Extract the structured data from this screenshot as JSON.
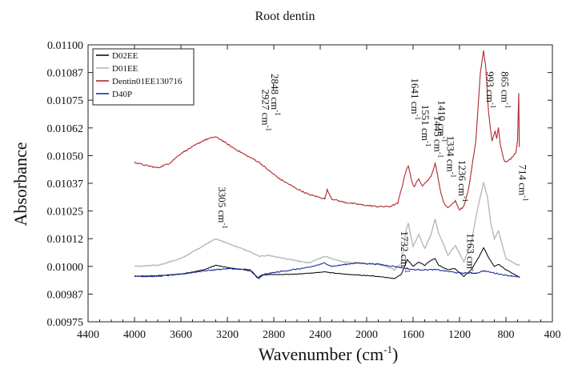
{
  "chart_data": {
    "type": "line",
    "title": "Root dentin",
    "xlabel": "Wavenumber (cm",
    "xlabel_sup": "-1",
    "xlabel_close": ")",
    "ylabel": "Absorbance",
    "xlim": [
      4400,
      400
    ],
    "ylim": [
      0.00975,
      0.011
    ],
    "x_reversed": true,
    "x_ticks": [
      4400,
      4000,
      3600,
      3200,
      2800,
      2400,
      2000,
      1600,
      1200,
      800,
      400
    ],
    "y_ticks": [
      "0.00975",
      "0.00987",
      "0.01000",
      "0.01012",
      "0.01025",
      "0.01037",
      "0.01050",
      "0.01062",
      "0.01075",
      "0.01087",
      "0.01100"
    ],
    "legend_position": "top-left",
    "series": [
      {
        "name": "D02EE",
        "color": "#111111",
        "points": [
          [
            4000,
            0.009955
          ],
          [
            3800,
            0.009958
          ],
          [
            3600,
            0.009965
          ],
          [
            3400,
            0.009985
          ],
          [
            3300,
            0.010005
          ],
          [
            3200,
            0.009995
          ],
          [
            3000,
            0.00998
          ],
          [
            2940,
            0.009948
          ],
          [
            2900,
            0.009962
          ],
          [
            2600,
            0.009965
          ],
          [
            2360,
            0.009975
          ],
          [
            2200,
            0.009965
          ],
          [
            1900,
            0.009955
          ],
          [
            1760,
            0.009945
          ],
          [
            1700,
            0.009965
          ],
          [
            1650,
            0.01003
          ],
          [
            1600,
            0.01
          ],
          [
            1550,
            0.01002
          ],
          [
            1500,
            0.010005
          ],
          [
            1450,
            0.010025
          ],
          [
            1410,
            0.010035
          ],
          [
            1380,
            0.010005
          ],
          [
            1300,
            0.009985
          ],
          [
            1240,
            0.00999
          ],
          [
            1163,
            0.009955
          ],
          [
            1100,
            0.009985
          ],
          [
            1030,
            0.010045
          ],
          [
            993,
            0.010085
          ],
          [
            950,
            0.01004
          ],
          [
            900,
            0.01
          ],
          [
            865,
            0.01001
          ],
          [
            800,
            0.009985
          ],
          [
            714,
            0.00996
          ],
          [
            680,
            0.00995
          ]
        ]
      },
      {
        "name": "D01EE",
        "color": "#b8b8b8",
        "points": [
          [
            4000,
            0.01
          ],
          [
            3800,
            0.010005
          ],
          [
            3600,
            0.010035
          ],
          [
            3400,
            0.010095
          ],
          [
            3305,
            0.010125
          ],
          [
            3200,
            0.010105
          ],
          [
            3000,
            0.010065
          ],
          [
            2927,
            0.010045
          ],
          [
            2848,
            0.01005
          ],
          [
            2700,
            0.010035
          ],
          [
            2500,
            0.010015
          ],
          [
            2360,
            0.010045
          ],
          [
            2200,
            0.01002
          ],
          [
            1900,
            0.01001
          ],
          [
            1760,
            0.009985
          ],
          [
            1700,
            0.010015
          ],
          [
            1660,
            0.010165
          ],
          [
            1641,
            0.010195
          ],
          [
            1600,
            0.01009
          ],
          [
            1551,
            0.010145
          ],
          [
            1500,
            0.01008
          ],
          [
            1445,
            0.010145
          ],
          [
            1410,
            0.010215
          ],
          [
            1380,
            0.01015
          ],
          [
            1334,
            0.010095
          ],
          [
            1300,
            0.01005
          ],
          [
            1236,
            0.010095
          ],
          [
            1163,
            0.01002
          ],
          [
            1100,
            0.010105
          ],
          [
            1050,
            0.010245
          ],
          [
            993,
            0.01038
          ],
          [
            960,
            0.010315
          ],
          [
            930,
            0.010195
          ],
          [
            900,
            0.010125
          ],
          [
            865,
            0.01016
          ],
          [
            830,
            0.010095
          ],
          [
            800,
            0.010035
          ],
          [
            714,
            0.01001
          ],
          [
            680,
            0.010005
          ]
        ]
      },
      {
        "name": "Dentin01EE130716",
        "color": "#b0282e",
        "points": [
          [
            4000,
            0.01047
          ],
          [
            3900,
            0.010455
          ],
          [
            3800,
            0.010445
          ],
          [
            3700,
            0.010465
          ],
          [
            3600,
            0.01051
          ],
          [
            3500,
            0.01054
          ],
          [
            3400,
            0.01057
          ],
          [
            3305,
            0.010585
          ],
          [
            3250,
            0.01057
          ],
          [
            3150,
            0.010535
          ],
          [
            3050,
            0.010505
          ],
          [
            2927,
            0.01047
          ],
          [
            2848,
            0.010435
          ],
          [
            2750,
            0.010395
          ],
          [
            2600,
            0.01035
          ],
          [
            2500,
            0.010325
          ],
          [
            2360,
            0.010305
          ],
          [
            2340,
            0.010345
          ],
          [
            2300,
            0.010305
          ],
          [
            2200,
            0.01029
          ],
          [
            2000,
            0.010275
          ],
          [
            1900,
            0.01027
          ],
          [
            1800,
            0.01027
          ],
          [
            1732,
            0.010285
          ],
          [
            1700,
            0.01035
          ],
          [
            1660,
            0.010435
          ],
          [
            1641,
            0.010455
          ],
          [
            1610,
            0.01038
          ],
          [
            1590,
            0.01036
          ],
          [
            1551,
            0.010395
          ],
          [
            1520,
            0.010365
          ],
          [
            1480,
            0.010385
          ],
          [
            1445,
            0.010405
          ],
          [
            1410,
            0.010465
          ],
          [
            1390,
            0.010415
          ],
          [
            1360,
            0.01033
          ],
          [
            1334,
            0.010285
          ],
          [
            1300,
            0.010265
          ],
          [
            1236,
            0.010295
          ],
          [
            1200,
            0.010255
          ],
          [
            1163,
            0.01027
          ],
          [
            1120,
            0.010355
          ],
          [
            1060,
            0.010565
          ],
          [
            1020,
            0.010875
          ],
          [
            993,
            0.010975
          ],
          [
            975,
            0.010905
          ],
          [
            950,
            0.010695
          ],
          [
            920,
            0.010565
          ],
          [
            893,
            0.01061
          ],
          [
            880,
            0.010575
          ],
          [
            865,
            0.01063
          ],
          [
            850,
            0.010555
          ],
          [
            820,
            0.010485
          ],
          [
            800,
            0.01047
          ],
          [
            760,
            0.010485
          ],
          [
            714,
            0.010515
          ],
          [
            700,
            0.01057
          ],
          [
            690,
            0.010785
          ],
          [
            685,
            0.010545
          ],
          [
            680,
            0.01054
          ]
        ]
      },
      {
        "name": "D40P",
        "color": "#1f2f9a",
        "points": [
          [
            4000,
            0.009955
          ],
          [
            3800,
            0.009955
          ],
          [
            3600,
            0.009965
          ],
          [
            3400,
            0.00998
          ],
          [
            3200,
            0.00999
          ],
          [
            3000,
            0.009985
          ],
          [
            2960,
            0.00996
          ],
          [
            2927,
            0.009945
          ],
          [
            2880,
            0.009965
          ],
          [
            2700,
            0.00998
          ],
          [
            2500,
            0.009995
          ],
          [
            2360,
            0.010015
          ],
          [
            2300,
            0.01
          ],
          [
            2100,
            0.010015
          ],
          [
            1900,
            0.01001
          ],
          [
            1700,
            0.009995
          ],
          [
            1600,
            0.009985
          ],
          [
            1400,
            0.009985
          ],
          [
            1200,
            0.00997
          ],
          [
            1050,
            0.00997
          ],
          [
            993,
            0.00998
          ],
          [
            900,
            0.00997
          ],
          [
            800,
            0.00996
          ],
          [
            714,
            0.009955
          ],
          [
            680,
            0.00995
          ]
        ]
      }
    ],
    "annotations": [
      {
        "text": "3305 cm",
        "sup": "-1",
        "x": 3305,
        "y": 0.01036
      },
      {
        "text": "2927 cm",
        "sup": "-1",
        "x": 2927,
        "y": 0.0108
      },
      {
        "text": "2848 cm",
        "sup": "-1",
        "x": 2848,
        "y": 0.01087
      },
      {
        "text": "1732 cm",
        "sup": "-1",
        "x": 1732,
        "y": 0.01016
      },
      {
        "text": "1641 cm",
        "sup": "-1",
        "x": 1641,
        "y": 0.01085
      },
      {
        "text": "1551 cm",
        "sup": "-1",
        "x": 1551,
        "y": 0.01073
      },
      {
        "text": "1445 cm",
        "sup": "-1",
        "x": 1445,
        "y": 0.01068
      },
      {
        "text": "1410 cm",
        "sup": "-1",
        "x": 1410,
        "y": 0.01075
      },
      {
        "text": "1334 cm",
        "sup": "-1",
        "x": 1334,
        "y": 0.01059
      },
      {
        "text": "1236 cm",
        "sup": "-1",
        "x": 1236,
        "y": 0.01048
      },
      {
        "text": "1163 cm",
        "sup": "-1",
        "x": 1163,
        "y": 0.01015
      },
      {
        "text": "993 cm",
        "sup": "-1",
        "x": 993,
        "y": 0.01088
      },
      {
        "text": "865 cm",
        "sup": "-1",
        "x": 865,
        "y": 0.01088
      },
      {
        "text": "714 cm",
        "sup": "-1",
        "x": 714,
        "y": 0.01046
      }
    ]
  }
}
